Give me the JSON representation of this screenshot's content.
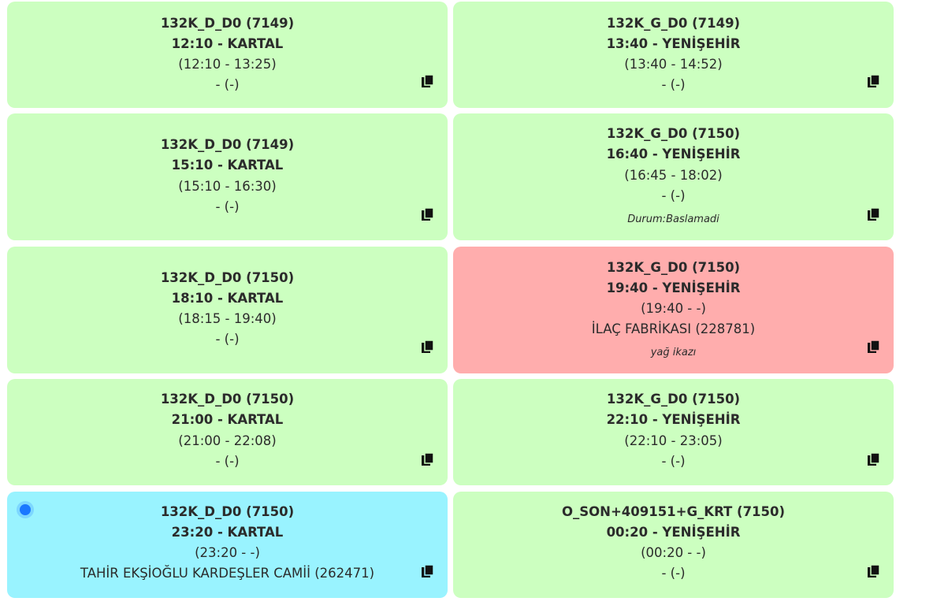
{
  "trips": [
    {
      "code": "132K_D_D0 (7149)",
      "time_dest": "12:10 - KARTAL",
      "range": "(12:10 - 13:25)",
      "stop": "- (-)",
      "note": "",
      "status_color": "#ccffc0"
    },
    {
      "code": "132K_G_D0 (7149)",
      "time_dest": "13:40 - YENİŞEHİR",
      "range": "(13:40 - 14:52)",
      "stop": "- (-)",
      "note": "",
      "status_color": "#ccffc0"
    },
    {
      "code": "132K_D_D0 (7149)",
      "time_dest": "15:10 - KARTAL",
      "range": "(15:10 - 16:30)",
      "stop": "- (-)",
      "note": "",
      "status_color": "#ccffc0"
    },
    {
      "code": "132K_G_D0 (7150)",
      "time_dest": "16:40 - YENİŞEHİR",
      "range": "(16:45 - 18:02)",
      "stop": "- (-)",
      "note": "Durum:Baslamadi",
      "status_color": "#ccffc0"
    },
    {
      "code": "132K_D_D0 (7150)",
      "time_dest": "18:10 - KARTAL",
      "range": "(18:15 - 19:40)",
      "stop": "- (-)",
      "note": "",
      "status_color": "#ccffc0"
    },
    {
      "code": "132K_G_D0 (7150)",
      "time_dest": "19:40 - YENİŞEHİR",
      "range": "(19:40 - -)",
      "stop": "İLAÇ FABRİKASI (228781)",
      "note": "yağ ikazı",
      "status_color": "#ffadad"
    },
    {
      "code": "132K_D_D0 (7150)",
      "time_dest": "21:00 - KARTAL",
      "range": "(21:00 - 22:08)",
      "stop": "- (-)",
      "note": "",
      "status_color": "#ccffc0"
    },
    {
      "code": "132K_G_D0 (7150)",
      "time_dest": "22:10 - YENİŞEHİR",
      "range": "(22:10 - 23:05)",
      "stop": "- (-)",
      "note": "",
      "status_color": "#ccffc0"
    },
    {
      "code": "132K_D_D0 (7150)",
      "time_dest": "23:20 - KARTAL",
      "range": "(23:20 - -)",
      "stop": "TAHİR EKŞİOĞLU KARDEŞLER CAMİİ (262471)",
      "note": "",
      "status_color": "#99f3ff",
      "active_indicator": true
    },
    {
      "code": "O_SON+409151+G_KRT (7150)",
      "time_dest": "00:20 - YENİŞEHİR",
      "range": "(00:20 - -)",
      "stop": "- (-)",
      "note": "",
      "status_color": "#ccffc0"
    }
  ],
  "icons": {
    "copy": "copy-icon",
    "active": "active-dot-icon"
  }
}
